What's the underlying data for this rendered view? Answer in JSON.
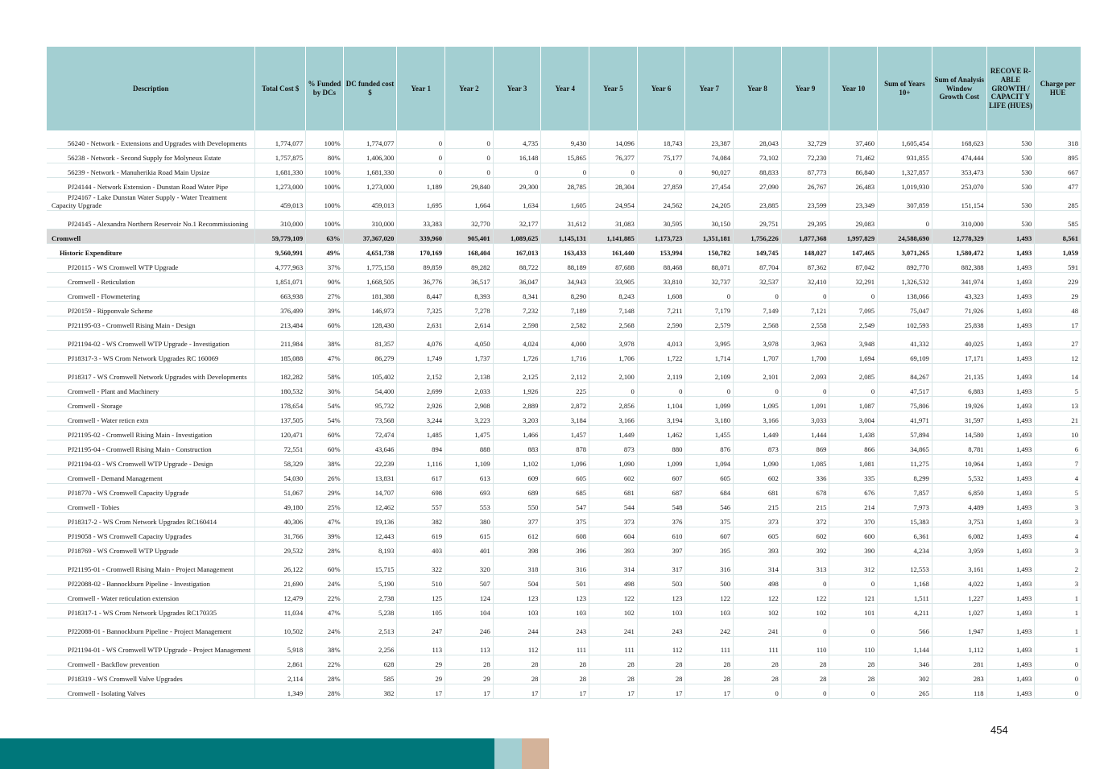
{
  "headers": [
    "Description",
    "Total Cost $",
    "% Funded by DCs",
    "DC funded cost $",
    "Year 1",
    "Year 2",
    "Year 3",
    "Year 4",
    "Year 5",
    "Year 6",
    "Year 7",
    "Year 8",
    "Year 9",
    "Year 10",
    "Sum of Years 10+",
    "Sum of Analysis Window Growth Cost",
    "RECOVE R-ABLE GROWTH / CAPACIT Y LIFE (HUES)",
    "Charge per HUE"
  ],
  "rows": [
    {
      "type": "item",
      "tall": true,
      "cells": [
        "56240 - Network - Extensions and Upgrades with Developments",
        "1,774,077",
        "100%",
        "1,774,077",
        "0",
        "0",
        "4,735",
        "9,430",
        "14,096",
        "18,743",
        "23,387",
        "28,043",
        "32,729",
        "37,460",
        "1,605,454",
        "168,623",
        "530",
        "318"
      ]
    },
    {
      "type": "item",
      "cells": [
        "56238 - Network - Second Supply for Molyneux Estate",
        "1,757,875",
        "80%",
        "1,406,300",
        "0",
        "0",
        "16,148",
        "15,865",
        "76,377",
        "75,177",
        "74,084",
        "73,102",
        "72,230",
        "71,462",
        "931,855",
        "474,444",
        "530",
        "895"
      ]
    },
    {
      "type": "item",
      "cells": [
        "56239 - Network - Manuherikia Road Main Upsize",
        "1,681,330",
        "100%",
        "1,681,330",
        "0",
        "0",
        "0",
        "0",
        "0",
        "0",
        "90,027",
        "88,833",
        "87,773",
        "86,840",
        "1,327,857",
        "353,473",
        "530",
        "667"
      ]
    },
    {
      "type": "item",
      "cells": [
        "PJ24144 - Network Extension - Dunstan Road Water Pipe",
        "1,273,000",
        "100%",
        "1,273,000",
        "1,189",
        "29,840",
        "29,300",
        "28,785",
        "28,304",
        "27,859",
        "27,454",
        "27,090",
        "26,767",
        "26,483",
        "1,019,930",
        "253,070",
        "530",
        "477"
      ]
    },
    {
      "type": "item",
      "tall": true,
      "cells": [
        "PJ24167 - Lake Dunstan Water Supply - Water Treatment Capacity Upgrade",
        "459,013",
        "100%",
        "459,013",
        "1,695",
        "1,664",
        "1,634",
        "1,605",
        "24,954",
        "24,562",
        "24,205",
        "23,885",
        "23,599",
        "23,349",
        "307,859",
        "151,154",
        "530",
        "285"
      ]
    },
    {
      "type": "item",
      "tall": true,
      "cells": [
        "PJ24145 - Alexandra Northern Reservoir No.1 Recommissioning",
        "310,000",
        "100%",
        "310,000",
        "33,383",
        "32,770",
        "32,177",
        "31,612",
        "31,083",
        "30,595",
        "30,150",
        "29,751",
        "29,395",
        "29,083",
        "0",
        "310,000",
        "530",
        "585"
      ]
    },
    {
      "type": "total",
      "cells": [
        "Cromwell",
        "59,779,109",
        "63%",
        "37,367,020",
        "339,960",
        "905,401",
        "1,089,625",
        "1,145,131",
        "1,141,885",
        "1,173,723",
        "1,351,181",
        "1,756,226",
        "1,877,368",
        "1,997,829",
        "24,588,690",
        "12,778,329",
        "1,493",
        "8,561"
      ]
    },
    {
      "type": "sub",
      "cells": [
        "Historic Expenditure",
        "9,560,991",
        "49%",
        "4,651,738",
        "170,169",
        "168,404",
        "167,013",
        "163,433",
        "161,440",
        "153,994",
        "150,782",
        "149,745",
        "148,027",
        "147,465",
        "3,071,265",
        "1,580,472",
        "1,493",
        "1,059"
      ]
    },
    {
      "type": "item",
      "cells": [
        "PJ20115 - WS Cromwell WTP Upgrade",
        "4,777,963",
        "37%",
        "1,775,158",
        "89,859",
        "89,282",
        "88,722",
        "88,189",
        "87,688",
        "88,468",
        "88,071",
        "87,704",
        "87,362",
        "87,042",
        "892,770",
        "882,388",
        "1,493",
        "591"
      ]
    },
    {
      "type": "item",
      "cells": [
        "Cromwell - Reticulation",
        "1,851,071",
        "90%",
        "1,668,505",
        "36,776",
        "36,517",
        "36,047",
        "34,943",
        "33,905",
        "33,810",
        "32,737",
        "32,537",
        "32,410",
        "32,291",
        "1,326,532",
        "341,974",
        "1,493",
        "229"
      ]
    },
    {
      "type": "item",
      "cells": [
        "Cromwell - Flowmetering",
        "663,938",
        "27%",
        "181,388",
        "8,447",
        "8,393",
        "8,341",
        "8,290",
        "8,243",
        "1,608",
        "0",
        "0",
        "0",
        "0",
        "138,066",
        "43,323",
        "1,493",
        "29"
      ]
    },
    {
      "type": "item",
      "cells": [
        "PJ20159 - Ripponvale Scheme",
        "376,499",
        "39%",
        "146,973",
        "7,325",
        "7,278",
        "7,232",
        "7,189",
        "7,148",
        "7,211",
        "7,179",
        "7,149",
        "7,121",
        "7,095",
        "75,047",
        "71,926",
        "1,493",
        "48"
      ]
    },
    {
      "type": "item",
      "cells": [
        "PJ21195-03 - Cromwell Rising Main - Design",
        "213,484",
        "60%",
        "128,430",
        "2,631",
        "2,614",
        "2,598",
        "2,582",
        "2,568",
        "2,590",
        "2,579",
        "2,568",
        "2,558",
        "2,549",
        "102,593",
        "25,838",
        "1,493",
        "17"
      ]
    },
    {
      "type": "item",
      "tall": true,
      "cells": [
        "PJ21194-02 - WS Cromwell WTP Upgrade - Investigation",
        "211,984",
        "38%",
        "81,357",
        "4,076",
        "4,050",
        "4,024",
        "4,000",
        "3,978",
        "4,013",
        "3,995",
        "3,978",
        "3,963",
        "3,948",
        "41,332",
        "40,025",
        "1,493",
        "27"
      ]
    },
    {
      "type": "item",
      "cells": [
        "PJ18317-3 - WS Crom Network Upgrades RC 160069",
        "185,088",
        "47%",
        "86,279",
        "1,749",
        "1,737",
        "1,726",
        "1,716",
        "1,706",
        "1,722",
        "1,714",
        "1,707",
        "1,700",
        "1,694",
        "69,109",
        "17,171",
        "1,493",
        "12"
      ]
    },
    {
      "type": "item",
      "tall": true,
      "cells": [
        "PJ18317 - WS Cromwell Network Upgrades with Developments",
        "182,282",
        "58%",
        "105,402",
        "2,152",
        "2,138",
        "2,125",
        "2,112",
        "2,100",
        "2,119",
        "2,109",
        "2,101",
        "2,093",
        "2,085",
        "84,267",
        "21,135",
        "1,493",
        "14"
      ]
    },
    {
      "type": "item",
      "cells": [
        "Cromwell - Plant and Machinery",
        "180,532",
        "30%",
        "54,400",
        "2,699",
        "2,033",
        "1,926",
        "225",
        "0",
        "0",
        "0",
        "0",
        "0",
        "0",
        "47,517",
        "6,883",
        "1,493",
        "5"
      ]
    },
    {
      "type": "item",
      "cells": [
        "Cromwell - Storage",
        "178,654",
        "54%",
        "95,732",
        "2,926",
        "2,908",
        "2,889",
        "2,872",
        "2,856",
        "1,104",
        "1,099",
        "1,095",
        "1,091",
        "1,087",
        "75,806",
        "19,926",
        "1,493",
        "13"
      ]
    },
    {
      "type": "item",
      "cells": [
        "Cromwell - Water reticn extn",
        "137,505",
        "54%",
        "73,568",
        "3,244",
        "3,223",
        "3,203",
        "3,184",
        "3,166",
        "3,194",
        "3,180",
        "3,166",
        "3,033",
        "3,004",
        "41,971",
        "31,597",
        "1,493",
        "21"
      ]
    },
    {
      "type": "item",
      "cells": [
        "PJ21195-02 - Cromwell Rising Main - Investigation",
        "120,471",
        "60%",
        "72,474",
        "1,485",
        "1,475",
        "1,466",
        "1,457",
        "1,449",
        "1,462",
        "1,455",
        "1,449",
        "1,444",
        "1,438",
        "57,894",
        "14,580",
        "1,493",
        "10"
      ]
    },
    {
      "type": "item",
      "cells": [
        "PJ21195-04 - Cromwell Rising Main - Construction",
        "72,551",
        "60%",
        "43,646",
        "894",
        "888",
        "883",
        "878",
        "873",
        "880",
        "876",
        "873",
        "869",
        "866",
        "34,865",
        "8,781",
        "1,493",
        "6"
      ]
    },
    {
      "type": "item",
      "cells": [
        "PJ21194-03 - WS Cromwell WTP Upgrade - Design",
        "58,329",
        "38%",
        "22,239",
        "1,116",
        "1,109",
        "1,102",
        "1,096",
        "1,090",
        "1,099",
        "1,094",
        "1,090",
        "1,085",
        "1,081",
        "11,275",
        "10,964",
        "1,493",
        "7"
      ]
    },
    {
      "type": "item",
      "cells": [
        "Cromwell - Demand Management",
        "54,030",
        "26%",
        "13,831",
        "617",
        "613",
        "609",
        "605",
        "602",
        "607",
        "605",
        "602",
        "336",
        "335",
        "8,299",
        "5,532",
        "1,493",
        "4"
      ]
    },
    {
      "type": "item",
      "cells": [
        "PJ18770 - WS Cromwell Capacity Upgrade",
        "51,067",
        "29%",
        "14,707",
        "698",
        "693",
        "689",
        "685",
        "681",
        "687",
        "684",
        "681",
        "678",
        "676",
        "7,857",
        "6,850",
        "1,493",
        "5"
      ]
    },
    {
      "type": "item",
      "cells": [
        "Cromwell - Tobies",
        "49,180",
        "25%",
        "12,462",
        "557",
        "553",
        "550",
        "547",
        "544",
        "548",
        "546",
        "215",
        "215",
        "214",
        "7,973",
        "4,489",
        "1,493",
        "3"
      ]
    },
    {
      "type": "item",
      "cells": [
        "PJ18317-2 - WS Crom Network Upgrades RC160414",
        "40,306",
        "47%",
        "19,136",
        "382",
        "380",
        "377",
        "375",
        "373",
        "376",
        "375",
        "373",
        "372",
        "370",
        "15,383",
        "3,753",
        "1,493",
        "3"
      ]
    },
    {
      "type": "item",
      "cells": [
        "PJ19058 - WS Cromwell Capacity Upgrades",
        "31,766",
        "39%",
        "12,443",
        "619",
        "615",
        "612",
        "608",
        "604",
        "610",
        "607",
        "605",
        "602",
        "600",
        "6,361",
        "6,082",
        "1,493",
        "4"
      ]
    },
    {
      "type": "item",
      "cells": [
        "PJ18769 - WS Cromwell WTP Upgrade",
        "29,532",
        "28%",
        "8,193",
        "403",
        "401",
        "398",
        "396",
        "393",
        "397",
        "395",
        "393",
        "392",
        "390",
        "4,234",
        "3,959",
        "1,493",
        "3"
      ]
    },
    {
      "type": "item",
      "tall": true,
      "cells": [
        "PJ21195-01 - Cromwell Rising Main - Project Management",
        "26,122",
        "60%",
        "15,715",
        "322",
        "320",
        "318",
        "316",
        "314",
        "317",
        "316",
        "314",
        "313",
        "312",
        "12,553",
        "3,161",
        "1,493",
        "2"
      ]
    },
    {
      "type": "item",
      "cells": [
        "PJ22088-02 - Bannockburn Pipeline - Investigation",
        "21,690",
        "24%",
        "5,190",
        "510",
        "507",
        "504",
        "501",
        "498",
        "503",
        "500",
        "498",
        "0",
        "0",
        "1,168",
        "4,022",
        "1,493",
        "3"
      ]
    },
    {
      "type": "item",
      "cells": [
        "Cromwell - Water reticulation extension",
        "12,479",
        "22%",
        "2,738",
        "125",
        "124",
        "123",
        "123",
        "122",
        "123",
        "122",
        "122",
        "122",
        "121",
        "1,511",
        "1,227",
        "1,493",
        "1"
      ]
    },
    {
      "type": "item",
      "cells": [
        "PJ18317-1 - WS Crom Network Upgrades RC170335",
        "11,034",
        "47%",
        "5,238",
        "105",
        "104",
        "103",
        "103",
        "102",
        "103",
        "103",
        "102",
        "102",
        "101",
        "4,211",
        "1,027",
        "1,493",
        "1"
      ]
    },
    {
      "type": "item",
      "tall": true,
      "cells": [
        "PJ22088-01 - Bannockburn Pipeline - Project Management",
        "10,502",
        "24%",
        "2,513",
        "247",
        "246",
        "244",
        "243",
        "241",
        "243",
        "242",
        "241",
        "0",
        "0",
        "566",
        "1,947",
        "1,493",
        "1"
      ]
    },
    {
      "type": "item",
      "tall": true,
      "cells": [
        "PJ21194-01 - WS Cromwell WTP Upgrade - Project Management",
        "5,918",
        "38%",
        "2,256",
        "113",
        "113",
        "112",
        "111",
        "111",
        "112",
        "111",
        "111",
        "110",
        "110",
        "1,144",
        "1,112",
        "1,493",
        "1"
      ]
    },
    {
      "type": "item",
      "cells": [
        "Cromwell - Backflow prevention",
        "2,861",
        "22%",
        "628",
        "29",
        "28",
        "28",
        "28",
        "28",
        "28",
        "28",
        "28",
        "28",
        "28",
        "346",
        "281",
        "1,493",
        "0"
      ]
    },
    {
      "type": "item",
      "cells": [
        "PJ18319 - WS Cromwell Valve Upgrades",
        "2,114",
        "28%",
        "585",
        "29",
        "29",
        "28",
        "28",
        "28",
        "28",
        "28",
        "28",
        "28",
        "28",
        "302",
        "283",
        "1,493",
        "0"
      ]
    },
    {
      "type": "item",
      "cells": [
        "Cromwell - Isolating Valves",
        "1,349",
        "28%",
        "382",
        "17",
        "17",
        "17",
        "17",
        "17",
        "17",
        "17",
        "0",
        "0",
        "0",
        "265",
        "118",
        "1,493",
        "0"
      ]
    }
  ],
  "page_number": "454",
  "colors": {
    "header_bg": "#a3cfd2",
    "total_bg": "#d9d9d9",
    "band_teal": "#00777a",
    "band_light": "#a3cfd2",
    "band_tan": "#d4b39a"
  }
}
